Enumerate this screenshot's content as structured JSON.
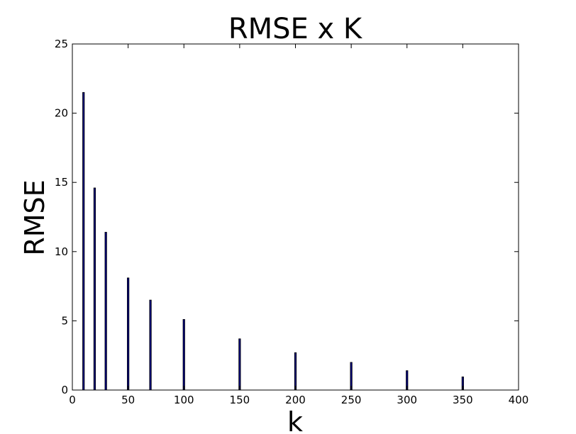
{
  "chart_data": {
    "type": "bar",
    "title": "RMSE x K",
    "xlabel": "k",
    "ylabel": "RMSE",
    "xlim": [
      0,
      400
    ],
    "ylim": [
      0,
      25
    ],
    "xticks": [
      0,
      50,
      100,
      150,
      200,
      250,
      300,
      350,
      400
    ],
    "yticks": [
      0,
      5,
      10,
      15,
      20,
      25
    ],
    "grid": false,
    "x": [
      10,
      20,
      30,
      50,
      70,
      100,
      150,
      200,
      250,
      300,
      350
    ],
    "values": [
      21.5,
      14.6,
      11.4,
      8.1,
      6.5,
      5.1,
      3.7,
      2.7,
      2.0,
      1.4,
      0.95
    ],
    "bar_color": "#000080",
    "edge_color": "#000000"
  }
}
